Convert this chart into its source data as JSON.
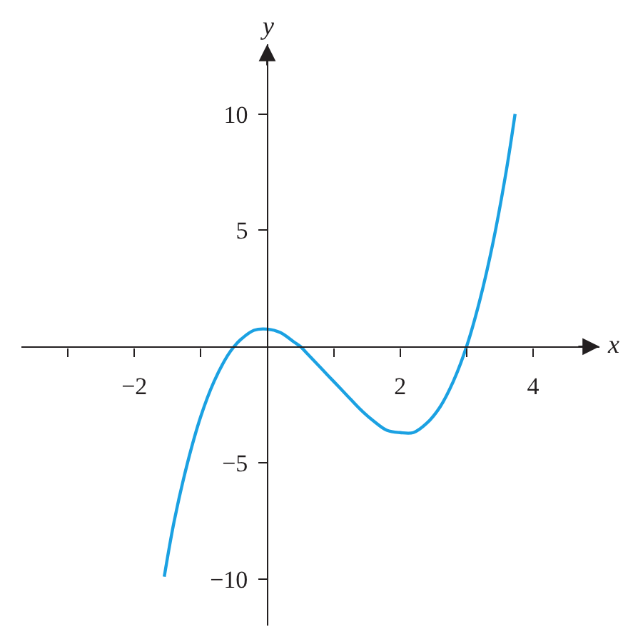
{
  "chart_data": {
    "type": "line",
    "xlabel": "x",
    "ylabel": "y",
    "x": [
      -1.55,
      -1.4,
      -1.2,
      -1.0,
      -0.8,
      -0.6,
      -0.5,
      -0.4,
      -0.2,
      0,
      0.2,
      0.4,
      0.5,
      0.6,
      0.8,
      1.0,
      1.2,
      1.4,
      1.6,
      1.8,
      2.0,
      2.2,
      2.4,
      2.6,
      2.8,
      3.0,
      3.2,
      3.4,
      3.6,
      3.73
    ],
    "series": [
      {
        "color": "#1ba1e2",
        "values": [
          -9.9,
          -7.5,
          -5.0,
          -3.0,
          -1.5,
          -0.4,
          0,
          0.3,
          0.7,
          0.75,
          0.6,
          0.2,
          0,
          -0.3,
          -0.9,
          -1.5,
          -2.1,
          -2.7,
          -3.2,
          -3.6,
          -3.7,
          -3.7,
          -3.3,
          -2.6,
          -1.5,
          0,
          2.0,
          4.5,
          7.6,
          10.0
        ]
      }
    ],
    "xlim": [
      -3.7,
      5.0
    ],
    "ylim": [
      -12,
      13
    ],
    "xticks": [
      {
        "value": -3,
        "label": null
      },
      {
        "value": -2,
        "label": "−2"
      },
      {
        "value": -1,
        "label": null
      },
      {
        "value": 1,
        "label": null
      },
      2,
      {
        "value": 3,
        "label": null
      },
      4
    ],
    "yticks": [
      {
        "value": -10,
        "label": "−10"
      },
      {
        "value": -5,
        "label": "−5"
      },
      5,
      10
    ],
    "grid": false,
    "marker": "none",
    "line_style": "solid"
  }
}
